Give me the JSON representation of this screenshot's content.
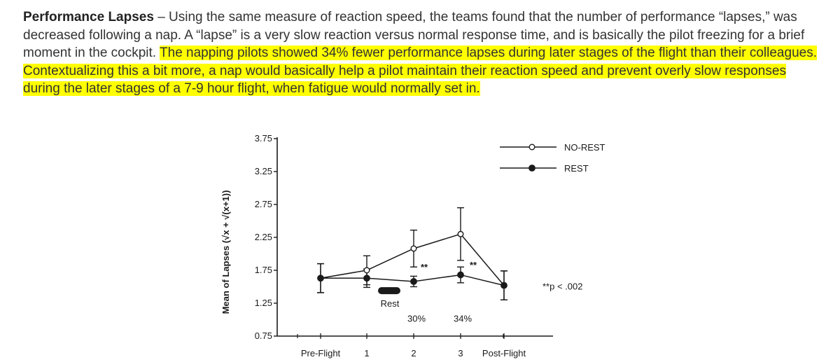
{
  "paragraph": {
    "heading": "Performance Lapses",
    "dash": " – ",
    "body": "Using the same measure of reaction speed, the teams found that the number of performance “lapses,” was decreased following a nap. A “lapse” is a very slow reaction versus normal response time, and is basically the pilot freezing for a brief moment in the cockpit. ",
    "highlight": "The napping pilots showed 34% fewer performance lapses during later stages of the flight than their colleagues. Contextualizing this a bit more, a nap would basically help a pilot maintain their reaction speed and prevent overly slow responses during the later stages of a 7-9 hour flight, when fatigue would normally set in.",
    "highlight_color": "#ffff00"
  },
  "chart_data": {
    "type": "line",
    "title": "",
    "xlabel": "",
    "ylabel": "Mean of Lapses (√x + √(x+1))",
    "ylim": [
      0.75,
      3.75
    ],
    "yticks": [
      "0.75",
      "1.25",
      "1.75",
      "2.25",
      "2.75",
      "3.25",
      "3.75"
    ],
    "categories": [
      "Pre-Flight",
      "1",
      "2",
      "3",
      "Post-Flight"
    ],
    "series": [
      {
        "name": "NO-REST",
        "marker": "open-circle",
        "values": [
          1.63,
          1.75,
          2.08,
          2.3,
          1.52
        ],
        "errors": [
          0.22,
          0.22,
          0.28,
          0.4,
          0.22
        ]
      },
      {
        "name": "REST",
        "marker": "filled-circle",
        "values": [
          1.63,
          1.63,
          1.58,
          1.68,
          1.52
        ],
        "errors": [
          0.22,
          0.14,
          0.08,
          0.12,
          0.22
        ]
      }
    ],
    "significance_markers": [
      "**",
      "**"
    ],
    "percent_labels": [
      "30%",
      "34%"
    ],
    "rest_label": "Rest",
    "p_value_note": "**p < .002",
    "legend_placement": "top-right",
    "grid": false
  }
}
